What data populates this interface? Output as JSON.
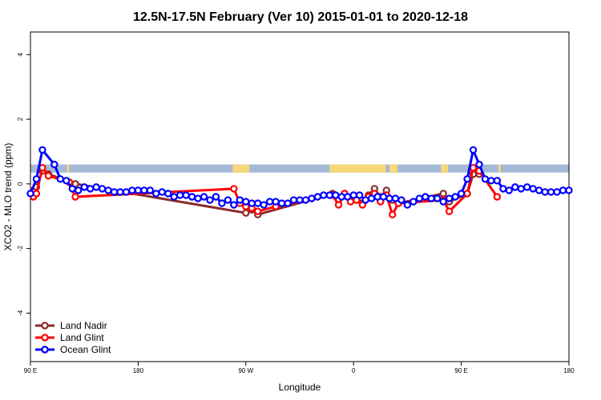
{
  "chart_data": {
    "type": "line",
    "title": "12.5N-17.5N February (Ver 10)   2015-01-01 to 2020-12-18",
    "xlabel": "Longitude",
    "ylabel": "XCO2 - MLO trend (ppm)",
    "xlim": [
      0,
      450
    ],
    "ylim": [
      -5.5,
      4.7
    ],
    "x_ticks": [
      {
        "value": 0,
        "label": "90 E"
      },
      {
        "value": 90,
        "label": "180"
      },
      {
        "value": 180,
        "label": "90 W"
      },
      {
        "value": 270,
        "label": "0"
      },
      {
        "value": 360,
        "label": "90 E"
      },
      {
        "value": 450,
        "label": "180"
      }
    ],
    "y_ticks": [
      {
        "value": -4,
        "label": "-4"
      },
      {
        "value": -2,
        "label": "-2"
      },
      {
        "value": 0,
        "label": "0"
      },
      {
        "value": 2,
        "label": "2"
      },
      {
        "value": 4,
        "label": "4"
      }
    ],
    "grid": false,
    "legend_position": "bottom-left",
    "land_mask": {
      "y_range": [
        0.35,
        0.6
      ],
      "ocean_color": "#a3b9d8",
      "land_color": "#f6d77a",
      "land_segments": [
        [
          30.5,
          32.5
        ],
        [
          169,
          183
        ],
        [
          250,
          297
        ],
        [
          300,
          307
        ],
        [
          343,
          349
        ],
        [
          391,
          393
        ]
      ]
    },
    "series": [
      {
        "name": "Land Nadir",
        "color": "#8b2a2a",
        "x": [
          2.5,
          5,
          10,
          15,
          37.5,
          180,
          185,
          190,
          252.5,
          257.5,
          262.5,
          267.5,
          272.5,
          277.5,
          282.5,
          287.5,
          292.5,
          297.5,
          302.5,
          307.5,
          345,
          350,
          365,
          370,
          375
        ],
        "y": [
          -0.2,
          -0.1,
          0.4,
          0.3,
          0.0,
          -0.9,
          -0.8,
          -0.95,
          -0.3,
          -0.5,
          -0.3,
          -0.5,
          -0.4,
          -0.6,
          -0.35,
          -0.15,
          -0.4,
          -0.2,
          -0.5,
          -0.6,
          -0.3,
          -0.55,
          -0.3,
          0.3,
          0.3
        ]
      },
      {
        "name": "Land Glint",
        "color": "#ff0000",
        "x": [
          2.5,
          5,
          10,
          15,
          32.5,
          37.5,
          170,
          175,
          180,
          185,
          190,
          205,
          252.5,
          257.5,
          262.5,
          267.5,
          272.5,
          277.5,
          282.5,
          287.5,
          292.5,
          297.5,
          302.5,
          307.5,
          345,
          350,
          365,
          370,
          375,
          390
        ],
        "y": [
          -0.4,
          -0.3,
          0.5,
          0.25,
          0.05,
          -0.4,
          -0.15,
          -0.6,
          -0.7,
          -0.75,
          -0.85,
          -0.7,
          -0.35,
          -0.65,
          -0.3,
          -0.55,
          -0.5,
          -0.65,
          -0.4,
          -0.3,
          -0.55,
          -0.35,
          -0.95,
          -0.6,
          -0.5,
          -0.85,
          -0.3,
          0.5,
          0.4,
          -0.4
        ]
      },
      {
        "name": "Ocean Glint",
        "color": "#0000ff",
        "x": [
          0,
          5,
          10,
          20,
          25,
          30,
          35,
          40,
          45,
          50,
          55,
          60,
          65,
          70,
          75,
          80,
          85,
          90,
          95,
          100,
          105,
          110,
          115,
          120,
          125,
          130,
          135,
          140,
          145,
          150,
          155,
          160,
          165,
          170,
          175,
          180,
          185,
          190,
          195,
          200,
          205,
          210,
          215,
          220,
          225,
          230,
          235,
          240,
          245,
          250,
          255,
          260,
          265,
          270,
          275,
          280,
          285,
          290,
          295,
          300,
          305,
          310,
          315,
          320,
          325,
          330,
          335,
          340,
          345,
          350,
          355,
          360,
          365,
          370,
          375,
          380,
          385,
          390,
          395,
          400,
          405,
          410,
          415,
          420,
          425,
          430,
          435,
          440,
          445,
          450
        ],
        "y": [
          -0.3,
          0.15,
          1.05,
          0.6,
          0.15,
          0.1,
          -0.15,
          -0.2,
          -0.1,
          -0.15,
          -0.1,
          -0.15,
          -0.2,
          -0.25,
          -0.25,
          -0.25,
          -0.2,
          -0.2,
          -0.2,
          -0.2,
          -0.3,
          -0.25,
          -0.3,
          -0.4,
          -0.35,
          -0.35,
          -0.4,
          -0.45,
          -0.4,
          -0.5,
          -0.4,
          -0.6,
          -0.5,
          -0.65,
          -0.5,
          -0.55,
          -0.6,
          -0.6,
          -0.65,
          -0.55,
          -0.55,
          -0.6,
          -0.6,
          -0.5,
          -0.5,
          -0.5,
          -0.45,
          -0.4,
          -0.35,
          -0.35,
          -0.35,
          -0.4,
          -0.4,
          -0.35,
          -0.35,
          -0.5,
          -0.45,
          -0.4,
          -0.4,
          -0.45,
          -0.45,
          -0.5,
          -0.65,
          -0.55,
          -0.45,
          -0.4,
          -0.45,
          -0.45,
          -0.55,
          -0.45,
          -0.4,
          -0.3,
          0.15,
          1.05,
          0.6,
          0.15,
          0.1,
          0.1,
          -0.15,
          -0.2,
          -0.1,
          -0.15,
          -0.1,
          -0.15,
          -0.2,
          -0.25,
          -0.25,
          -0.25,
          -0.2,
          -0.2
        ]
      }
    ]
  }
}
